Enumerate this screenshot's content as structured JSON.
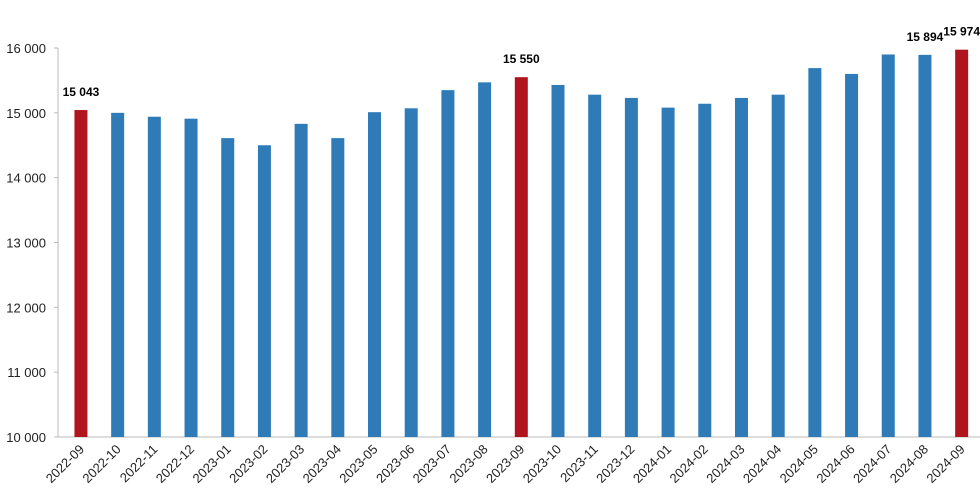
{
  "chart_data": {
    "type": "bar",
    "categories": [
      "2022-09",
      "2022-10",
      "2022-11",
      "2022-12",
      "2023-01",
      "2023-02",
      "2023-03",
      "2023-04",
      "2023-05",
      "2023-06",
      "2023-07",
      "2023-08",
      "2023-09",
      "2023-10",
      "2023-11",
      "2023-12",
      "2024-01",
      "2024-02",
      "2024-03",
      "2024-04",
      "2024-05",
      "2024-06",
      "2024-07",
      "2024-08",
      "2024-09"
    ],
    "values": [
      15043,
      15000,
      14940,
      14910,
      14610,
      14500,
      14830,
      14610,
      15010,
      15070,
      15350,
      15470,
      15550,
      15430,
      15280,
      15230,
      15080,
      15140,
      15230,
      15280,
      15690,
      15600,
      15900,
      15894,
      15974
    ],
    "value_labels": [
      "15 043",
      null,
      null,
      null,
      null,
      null,
      null,
      null,
      null,
      null,
      null,
      null,
      "15 550",
      null,
      null,
      null,
      null,
      null,
      null,
      null,
      null,
      null,
      null,
      "15 894",
      "15 974"
    ],
    "colors": [
      "#b0141c",
      "#2e7bb8",
      "#2e7bb8",
      "#2e7bb8",
      "#2e7bb8",
      "#2e7bb8",
      "#2e7bb8",
      "#2e7bb8",
      "#2e7bb8",
      "#2e7bb8",
      "#2e7bb8",
      "#2e7bb8",
      "#b0141c",
      "#2e7bb8",
      "#2e7bb8",
      "#2e7bb8",
      "#2e7bb8",
      "#2e7bb8",
      "#2e7bb8",
      "#2e7bb8",
      "#2e7bb8",
      "#2e7bb8",
      "#2e7bb8",
      "#2e7bb8",
      "#b0141c"
    ],
    "ylim": [
      10000,
      16000
    ],
    "yticks": [
      {
        "value": 10000,
        "label": "10 000"
      },
      {
        "value": 11000,
        "label": "11 000"
      },
      {
        "value": 12000,
        "label": "12 000"
      },
      {
        "value": 13000,
        "label": "13 000"
      },
      {
        "value": 14000,
        "label": "14 000"
      },
      {
        "value": 15000,
        "label": "15 000"
      },
      {
        "value": 16000,
        "label": "16 000"
      }
    ],
    "grid": false
  }
}
